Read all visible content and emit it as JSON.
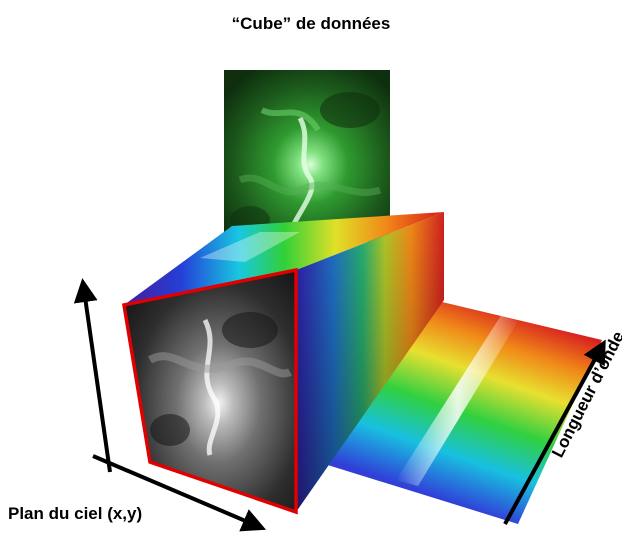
{
  "title": "“Cube” de données",
  "axis_labels": {
    "sky_plane": "Plan du ciel (x,y)",
    "wavelength": "Longueur d’onde"
  },
  "colors": {
    "front_frame": "#e00000",
    "green_slice": "#2e8a2e",
    "spectrum": [
      "#5a1fa0",
      "#2a3fd0",
      "#00b7d8",
      "#3ad030",
      "#e8e020",
      "#f08a10",
      "#d81818"
    ]
  }
}
